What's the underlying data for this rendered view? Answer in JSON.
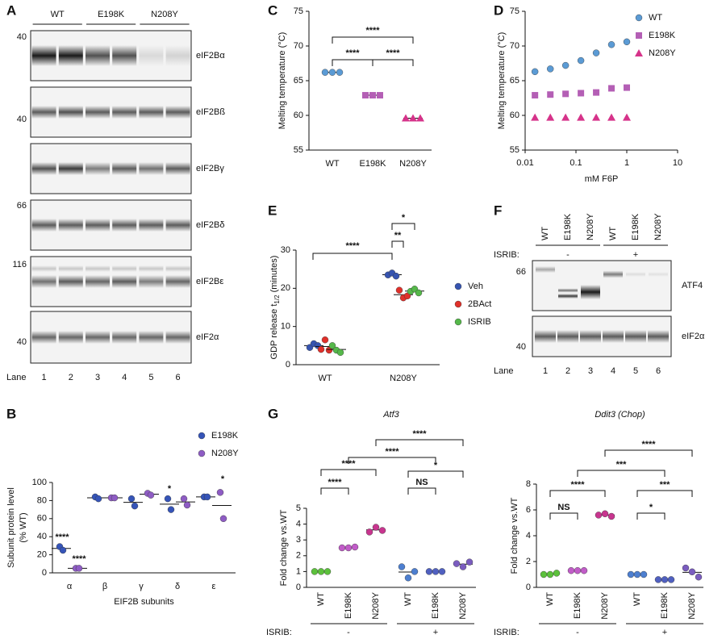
{
  "blots": [
    {
      "panel": "A",
      "lane_groups": [
        "WT",
        "E198K",
        "N208Y"
      ],
      "rows": [
        {
          "label": "eIF2Bα",
          "marker": 40
        },
        {
          "label": "eIF2Bß",
          "marker": 40
        },
        {
          "label": "eIF2Bγ"
        },
        {
          "label": "eIF2Bδ",
          "marker": 66
        },
        {
          "label": "eIF2Bε",
          "marker": 116
        },
        {
          "label": "eIF2α",
          "marker": 40
        }
      ],
      "lane_label": "Lane",
      "lanes": [
        1,
        2,
        3,
        4,
        5,
        6
      ]
    },
    {
      "panel": "F",
      "lane_headers": [
        "WT",
        "E198K",
        "N208Y",
        "WT",
        "E198K",
        "N208Y"
      ],
      "isrib_label": "ISRIB:",
      "isrib_states": [
        "-",
        "+"
      ],
      "rows": [
        {
          "label": "ATF4",
          "marker": 66
        },
        {
          "label": "eIF2α",
          "marker": 40
        }
      ],
      "lane_label": "Lane",
      "lanes": [
        1,
        2,
        3,
        4,
        5,
        6
      ]
    }
  ],
  "chart_data": [
    {
      "type": "grouped-dot",
      "panel": "B",
      "y_label": [
        "Subunit protein level",
        "(% WT)"
      ],
      "x_label": "EIF2B subunits",
      "categories": [
        "α",
        "β",
        "γ",
        "δ",
        "ε"
      ],
      "ylim": [
        0,
        100
      ],
      "yticks": [
        0,
        20,
        40,
        60,
        80,
        100
      ],
      "legend": "upper right",
      "series": [
        {
          "name": "E198K",
          "color": "#3554b8",
          "marker": "circle",
          "values": [
            [
              29,
              25
            ],
            [
              84,
              82
            ],
            [
              82,
              74
            ],
            [
              82,
              70
            ],
            [
              84,
              84
            ]
          ]
        },
        {
          "name": "N208Y",
          "color": "#8e5cc4",
          "marker": "circle",
          "values": [
            [
              5,
              5
            ],
            [
              83,
              83
            ],
            [
              88,
              86
            ],
            [
              82,
              75
            ],
            [
              89,
              60
            ]
          ]
        }
      ],
      "annotations": [
        "****",
        "****",
        "*",
        "*"
      ]
    },
    {
      "type": "dot",
      "panel": "C",
      "y_label": "Melting temperature (°C)",
      "categories": [
        "WT",
        "E198K",
        "N208Y"
      ],
      "ylim": [
        55,
        75
      ],
      "yticks": [
        55,
        60,
        65,
        70,
        75
      ],
      "colors": [
        "#5b9bd5",
        "#b45fb5",
        "#d6338a"
      ],
      "markers": [
        "circle",
        "square",
        "triangle"
      ],
      "values": [
        [
          66.2,
          66.2,
          66.2
        ],
        [
          62.9,
          62.9,
          62.9
        ],
        [
          59.6,
          59.6,
          59.6
        ]
      ],
      "annotations": [
        "****",
        "****",
        "****"
      ]
    },
    {
      "type": "scatter",
      "panel": "D",
      "y_label": "Melting temperature (°C)",
      "x_label": "mM F6P",
      "x_scale": "log",
      "xlim": [
        0.01,
        10
      ],
      "xticks": [
        0.01,
        0.1,
        1,
        10
      ],
      "ylim": [
        55,
        75
      ],
      "yticks": [
        55,
        60,
        65,
        70,
        75
      ],
      "legend": "upper right",
      "series": [
        {
          "name": "WT",
          "color": "#5b9bd5",
          "marker": "circle",
          "x": [
            0.0156,
            0.0313,
            0.0625,
            0.125,
            0.25,
            0.5,
            1
          ],
          "values": [
            66.3,
            66.7,
            67.2,
            67.9,
            69.0,
            70.2,
            70.6
          ]
        },
        {
          "name": "E198K",
          "color": "#b45fb5",
          "marker": "square",
          "x": [
            0.0156,
            0.0313,
            0.0625,
            0.125,
            0.25,
            0.5,
            1
          ],
          "values": [
            62.9,
            63.0,
            63.1,
            63.2,
            63.3,
            63.9,
            64.0
          ]
        },
        {
          "name": "N208Y",
          "color": "#d6338a",
          "marker": "triangle",
          "x": [
            0.0156,
            0.0313,
            0.0625,
            0.125,
            0.25,
            0.5,
            1
          ],
          "values": [
            59.7,
            59.7,
            59.7,
            59.7,
            59.7,
            59.7,
            59.7
          ]
        }
      ]
    },
    {
      "type": "grouped-dot",
      "panel": "E",
      "y_label": {
        "text": "GDP release t",
        "sub": "1/2",
        "after": " (minutes)"
      },
      "categories": [
        "WT",
        "N208Y"
      ],
      "ylim": [
        0,
        30
      ],
      "yticks": [
        0,
        10,
        20,
        30
      ],
      "legend": "right",
      "series": [
        {
          "name": "Veh",
          "color": "#3654b0",
          "marker": "circle",
          "values": [
            [
              4.5,
              5.5,
              5.0
            ],
            [
              23.5,
              24.0,
              23.2
            ]
          ]
        },
        {
          "name": "2BAct",
          "color": "#e0302a",
          "marker": "circle",
          "values": [
            [
              4.0,
              6.5,
              3.8
            ],
            [
              19.5,
              17.5,
              18.0
            ]
          ]
        },
        {
          "name": "ISRIB",
          "color": "#55b84a",
          "marker": "circle",
          "values": [
            [
              5.0,
              3.8,
              3.2
            ],
            [
              19.2,
              19.8,
              18.8
            ]
          ]
        }
      ],
      "annotations": [
        "****",
        "**",
        "*"
      ]
    },
    {
      "type": "dot",
      "panel": "G",
      "title": "Atf3",
      "y_label": "Fold change vs.WT",
      "categories": [
        "WT",
        "E198K",
        "N208Y",
        "WT",
        "E198K",
        "N208Y"
      ],
      "ylim": [
        0,
        5
      ],
      "yticks": [
        0,
        1,
        2,
        3,
        4,
        5
      ],
      "colors": [
        "#5cc13c",
        "#c15cc8",
        "#c8358f",
        "#4d7fd0",
        "#5060c0",
        "#7a5cbf"
      ],
      "values": [
        [
          1.0,
          1.0,
          1.0
        ],
        [
          2.5,
          2.5,
          2.55
        ],
        [
          3.5,
          3.8,
          3.6
        ],
        [
          1.3,
          0.6,
          1.0
        ],
        [
          1.0,
          1.0,
          1.0
        ],
        [
          1.5,
          1.3,
          1.6
        ]
      ],
      "annotations": [
        "****",
        "****",
        "****",
        "*",
        "****",
        "NS"
      ],
      "isrib_label": "ISRIB:",
      "isrib_states": [
        "-",
        "+"
      ]
    },
    {
      "type": "dot",
      "title": "Ddit3 (Chop)",
      "y_label": "Fold change vs.WT",
      "categories": [
        "WT",
        "E198K",
        "N208Y",
        "WT",
        "E198K",
        "N208Y"
      ],
      "ylim": [
        0,
        8
      ],
      "yticks": [
        0,
        2,
        4,
        6,
        8
      ],
      "colors": [
        "#5cc13c",
        "#c15cc8",
        "#c8358f",
        "#4d7fd0",
        "#5060c0",
        "#7a5cbf"
      ],
      "values": [
        [
          1.0,
          1.0,
          1.1
        ],
        [
          1.3,
          1.3,
          1.3
        ],
        [
          5.6,
          5.7,
          5.5
        ],
        [
          1.0,
          1.0,
          1.0
        ],
        [
          0.6,
          0.6,
          0.6
        ],
        [
          1.5,
          1.2,
          0.8
        ]
      ],
      "annotations": [
        "****",
        "***",
        "****",
        "***",
        "NS",
        "*"
      ],
      "isrib_label": "ISRIB:",
      "isrib_states": [
        "-",
        "+"
      ]
    }
  ]
}
